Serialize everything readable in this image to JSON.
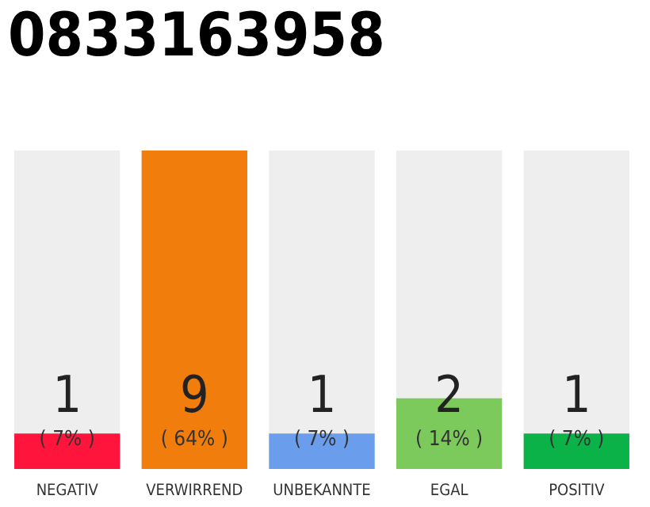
{
  "chart_data": {
    "type": "bar",
    "title": "0833163958",
    "categories": [
      "NEGATIV",
      "VERWIRREND",
      "UNBEKANNTE",
      "EGAL",
      "POSITIV"
    ],
    "values": [
      1,
      9,
      1,
      2,
      1
    ],
    "colors": [
      "#ff153c",
      "#f07d0c",
      "#6a9eed",
      "#7cc95c",
      "#0ab247"
    ],
    "ylim": [
      0,
      9
    ],
    "tick_labels": "x",
    "data_labels": true,
    "grid": false,
    "legend": false,
    "annotations": [
      "( 7% )",
      "( 64% )",
      "( 7% )",
      "( 14% )",
      "( 7% )"
    ]
  }
}
